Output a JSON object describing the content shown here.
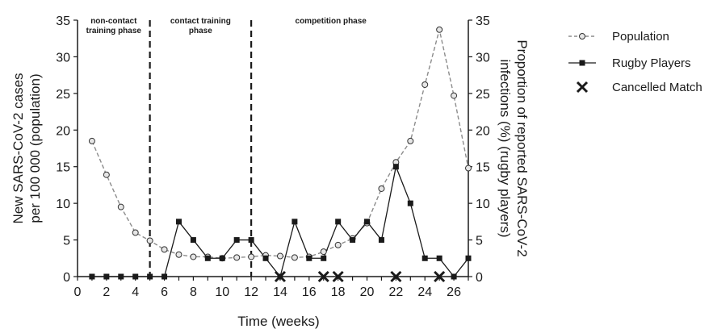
{
  "chart_data": {
    "type": "line",
    "xlabel": "Time (weeks)",
    "ylabel_left": [
      "New SARS-CoV-2 cases",
      "per 100 000 (population)"
    ],
    "ylabel_right": [
      "Proportion of reported SARS-CoV-2",
      "infections (%) (rugby players)"
    ],
    "xlim": [
      0,
      27
    ],
    "ylim": [
      0,
      35
    ],
    "x_ticks": [
      0,
      2,
      4,
      6,
      8,
      10,
      12,
      14,
      16,
      18,
      20,
      22,
      24,
      26
    ],
    "y_ticks": [
      0,
      5,
      10,
      15,
      20,
      25,
      30,
      35
    ],
    "phase_boundaries": [
      5,
      12
    ],
    "phases": [
      {
        "label_lines": [
          "non-contact",
          "training phase"
        ],
        "x_center": 2.5
      },
      {
        "label_lines": [
          "contact training",
          "phase"
        ],
        "x_center": 8.5
      },
      {
        "label_lines": [
          "competition phase"
        ],
        "x_center": 17.5
      }
    ],
    "series": [
      {
        "name": "Population",
        "axis": "left",
        "style": "dashed-open-circle",
        "color": "#8c8c8c",
        "x": [
          1,
          2,
          3,
          4,
          5,
          6,
          7,
          8,
          9,
          10,
          11,
          12,
          13,
          14,
          15,
          16,
          17,
          18,
          19,
          20,
          21,
          22,
          23,
          24,
          25,
          26,
          27
        ],
        "y": [
          18.5,
          13.9,
          9.5,
          6.0,
          4.9,
          3.7,
          3.0,
          2.7,
          2.7,
          2.5,
          2.6,
          2.7,
          2.9,
          2.8,
          2.6,
          2.7,
          3.4,
          4.3,
          5.2,
          7.3,
          12.0,
          15.6,
          18.5,
          26.2,
          33.7,
          24.7,
          14.8
        ]
      },
      {
        "name": "Rugby Players",
        "axis": "right",
        "style": "solid-filled-square",
        "color": "#1a1a1a",
        "x": [
          1,
          2,
          3,
          4,
          5,
          6,
          7,
          8,
          9,
          10,
          11,
          12,
          13,
          14,
          15,
          16,
          17,
          18,
          19,
          20,
          21,
          22,
          23,
          24,
          25,
          26,
          27
        ],
        "y": [
          0,
          0,
          0,
          0,
          0,
          0,
          7.5,
          5.0,
          2.5,
          2.5,
          5.0,
          5.0,
          2.5,
          0,
          7.5,
          2.5,
          2.5,
          7.5,
          5.0,
          7.5,
          5.0,
          15.0,
          10.0,
          2.5,
          2.5,
          0,
          2.5
        ]
      },
      {
        "name": "Cancelled Match",
        "axis": "right",
        "style": "x-marker",
        "color": "#1a1a1a",
        "x": [
          14,
          17,
          18,
          22,
          25
        ],
        "y": [
          0,
          0,
          0,
          0,
          0
        ]
      }
    ],
    "legend": {
      "position": "top-right outside",
      "entries": [
        "Population",
        "Rugby Players",
        "Cancelled Match"
      ]
    },
    "grid": false
  }
}
